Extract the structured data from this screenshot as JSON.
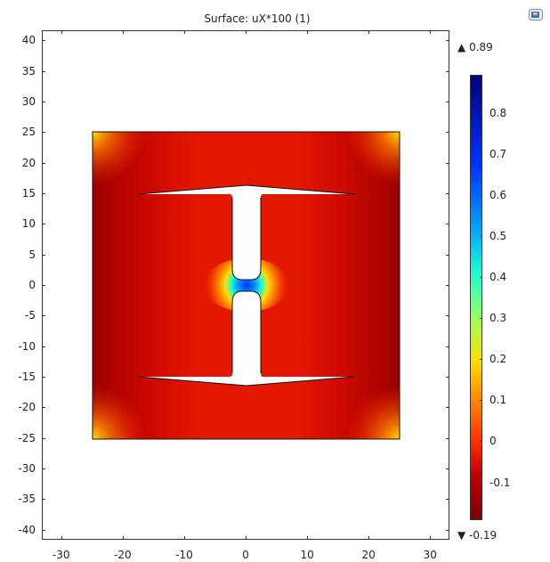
{
  "title": "Surface: uX*100 (1)",
  "x_axis": {
    "ticks": [
      "-30",
      "-20",
      "-10",
      "0",
      "10",
      "20",
      "30"
    ],
    "range": [
      -33,
      33
    ]
  },
  "y_axis": {
    "ticks": [
      "40",
      "35",
      "30",
      "25",
      "20",
      "15",
      "10",
      "5",
      "0",
      "-5",
      "-10",
      "-15",
      "-20",
      "-25",
      "-30",
      "-35",
      "-40"
    ],
    "range": [
      -41.5,
      41.5
    ]
  },
  "colorbar": {
    "max_label": "0.89",
    "min_label": "-0.19",
    "max_marker": "▲",
    "min_marker": "▼",
    "ticks": [
      "0.8",
      "0.7",
      "0.6",
      "0.5",
      "0.4",
      "0.3",
      "0.2",
      "0.1",
      "0",
      "-0.1"
    ],
    "range": [
      -0.19,
      0.89
    ],
    "colormap": [
      "#7a0000",
      "#c00000",
      "#ff2a00",
      "#ff8a00",
      "#ffe000",
      "#9dff5c",
      "#20ffd0",
      "#00a0ff",
      "#0030ff",
      "#00007a"
    ]
  },
  "icons": {
    "corner": "camera-icon"
  }
}
